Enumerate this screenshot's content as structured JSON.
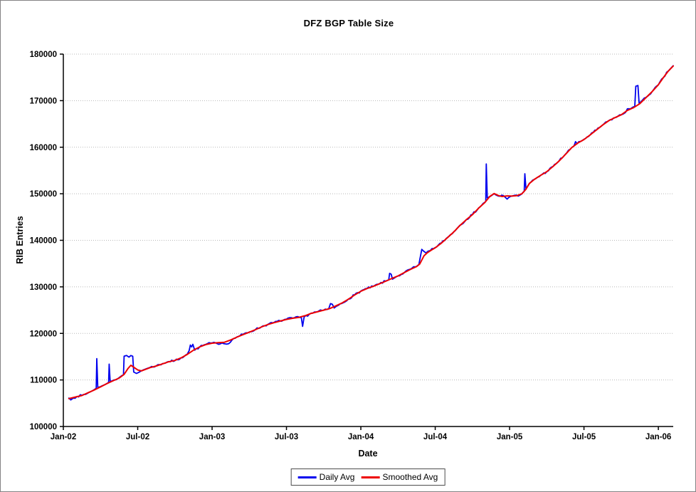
{
  "window": {
    "background": "#ffffff",
    "border_color": "#848284"
  },
  "chart_data": {
    "type": "line",
    "title": "DFZ BGP Table Size",
    "xlabel": "Date",
    "ylabel": "RIB Entries",
    "ylim": [
      100000,
      180000
    ],
    "yticks": [
      100000,
      110000,
      120000,
      130000,
      140000,
      150000,
      160000,
      170000,
      180000
    ],
    "x_unit": "months since Jan-2002",
    "xlim_months": [
      0,
      49.2
    ],
    "xticks": [
      {
        "pos": 0,
        "label": "Jan-02"
      },
      {
        "pos": 6,
        "label": "Jul-02"
      },
      {
        "pos": 12,
        "label": "Jan-03"
      },
      {
        "pos": 18,
        "label": "Jul-03"
      },
      {
        "pos": 24,
        "label": "Jan-04"
      },
      {
        "pos": 30,
        "label": "Jul-04"
      },
      {
        "pos": 36,
        "label": "Jan-05"
      },
      {
        "pos": 42,
        "label": "Jul-05"
      },
      {
        "pos": 48,
        "label": "Jan-06"
      }
    ],
    "grid": "horizontal-dotted",
    "grid_color": "#b8b8b8",
    "axis_color": "#000000",
    "legend_position": "bottom-center",
    "series": [
      {
        "name": "Daily Avg",
        "color": "#0000ee",
        "width": 1.8,
        "texture_amplitude": 220,
        "points": [
          [
            0.45,
            106100
          ],
          [
            0.6,
            105700
          ],
          [
            0.8,
            106100
          ],
          [
            1.1,
            106450
          ],
          [
            1.5,
            106700
          ],
          [
            1.8,
            106900
          ],
          [
            2.1,
            107350
          ],
          [
            2.4,
            107750
          ],
          [
            2.65,
            108200
          ],
          [
            2.7,
            114600
          ],
          [
            2.78,
            108400
          ],
          [
            3.1,
            108700
          ],
          [
            3.4,
            109050
          ],
          [
            3.65,
            109450
          ],
          [
            3.7,
            113400
          ],
          [
            3.78,
            109650
          ],
          [
            4.1,
            110000
          ],
          [
            4.4,
            110300
          ],
          [
            4.7,
            110900
          ],
          [
            4.85,
            111100
          ],
          [
            4.9,
            115100
          ],
          [
            5.1,
            115250
          ],
          [
            5.3,
            114900
          ],
          [
            5.45,
            115250
          ],
          [
            5.6,
            115100
          ],
          [
            5.68,
            111700
          ],
          [
            5.9,
            111400
          ],
          [
            6.1,
            111650
          ],
          [
            6.4,
            112100
          ],
          [
            6.7,
            112400
          ],
          [
            7,
            112700
          ],
          [
            7.5,
            113050
          ],
          [
            8,
            113500
          ],
          [
            8.5,
            113950
          ],
          [
            9,
            114150
          ],
          [
            9.5,
            114750
          ],
          [
            10,
            115550
          ],
          [
            10.15,
            116300
          ],
          [
            10.25,
            117500
          ],
          [
            10.35,
            117100
          ],
          [
            10.45,
            117650
          ],
          [
            10.6,
            116400
          ],
          [
            11,
            117100
          ],
          [
            11.5,
            117650
          ],
          [
            12,
            117950
          ],
          [
            12.4,
            117800
          ],
          [
            12.8,
            117950
          ],
          [
            13.2,
            117700
          ],
          [
            13.6,
            118550
          ],
          [
            14,
            119250
          ],
          [
            14.5,
            119800
          ],
          [
            15,
            120300
          ],
          [
            15.5,
            120850
          ],
          [
            16,
            121450
          ],
          [
            16.5,
            121950
          ],
          [
            17,
            122350
          ],
          [
            17.5,
            122700
          ],
          [
            18,
            123050
          ],
          [
            18.5,
            123300
          ],
          [
            19.2,
            123450
          ],
          [
            19.3,
            121500
          ],
          [
            19.42,
            123500
          ],
          [
            20,
            124350
          ],
          [
            20.5,
            124650
          ],
          [
            21,
            125000
          ],
          [
            21.4,
            125250
          ],
          [
            21.55,
            126400
          ],
          [
            21.7,
            126250
          ],
          [
            21.85,
            125450
          ],
          [
            22.2,
            126050
          ],
          [
            22.6,
            126600
          ],
          [
            23,
            127400
          ],
          [
            23.5,
            128300
          ],
          [
            24,
            129100
          ],
          [
            24.5,
            129650
          ],
          [
            25,
            130100
          ],
          [
            25.5,
            130650
          ],
          [
            26,
            131250
          ],
          [
            26.25,
            131500
          ],
          [
            26.32,
            132900
          ],
          [
            26.45,
            132700
          ],
          [
            26.55,
            131650
          ],
          [
            27,
            132350
          ],
          [
            27.5,
            133050
          ],
          [
            28,
            133800
          ],
          [
            28.5,
            134400
          ],
          [
            28.68,
            134800
          ],
          [
            28.8,
            136500
          ],
          [
            28.92,
            138050
          ],
          [
            29.05,
            137700
          ],
          [
            29.25,
            137300
          ],
          [
            29.6,
            137800
          ],
          [
            30,
            138450
          ],
          [
            30.5,
            139450
          ],
          [
            31,
            140650
          ],
          [
            31.5,
            141850
          ],
          [
            32,
            143250
          ],
          [
            32.5,
            144450
          ],
          [
            33,
            145550
          ],
          [
            33.5,
            146950
          ],
          [
            34,
            148150
          ],
          [
            34.08,
            148350
          ],
          [
            34.12,
            156400
          ],
          [
            34.2,
            149100
          ],
          [
            34.45,
            149450
          ],
          [
            34.75,
            150000
          ],
          [
            35.1,
            149500
          ],
          [
            35.5,
            149600
          ],
          [
            35.8,
            148850
          ],
          [
            36.1,
            149450
          ],
          [
            36.4,
            149650
          ],
          [
            36.7,
            149500
          ],
          [
            36.95,
            149900
          ],
          [
            37.1,
            150350
          ],
          [
            37.18,
            150500
          ],
          [
            37.23,
            154300
          ],
          [
            37.32,
            151000
          ],
          [
            37.6,
            152250
          ],
          [
            38,
            153100
          ],
          [
            38.5,
            153950
          ],
          [
            39,
            154750
          ],
          [
            39.5,
            155850
          ],
          [
            40,
            157100
          ],
          [
            40.5,
            158500
          ],
          [
            41,
            159900
          ],
          [
            41.2,
            160300
          ],
          [
            41.32,
            161200
          ],
          [
            41.45,
            160750
          ],
          [
            42,
            161700
          ],
          [
            42.5,
            162650
          ],
          [
            43,
            163700
          ],
          [
            43.5,
            164750
          ],
          [
            44,
            165700
          ],
          [
            44.5,
            166350
          ],
          [
            45,
            166950
          ],
          [
            45.35,
            167450
          ],
          [
            45.5,
            168250
          ],
          [
            45.9,
            168550
          ],
          [
            46.1,
            168800
          ],
          [
            46.18,
            173100
          ],
          [
            46.35,
            173250
          ],
          [
            46.45,
            169350
          ],
          [
            47,
            170700
          ],
          [
            47.5,
            171950
          ],
          [
            48,
            173400
          ],
          [
            48.4,
            174950
          ],
          [
            48.8,
            176350
          ],
          [
            49.05,
            177100
          ],
          [
            49.2,
            177500
          ]
        ]
      },
      {
        "name": "Smoothed Avg",
        "color": "#ee0000",
        "width": 2,
        "points": [
          [
            0.45,
            106000
          ],
          [
            1,
            106350
          ],
          [
            1.5,
            106650
          ],
          [
            2,
            107250
          ],
          [
            2.5,
            107850
          ],
          [
            3,
            108500
          ],
          [
            3.5,
            109200
          ],
          [
            4,
            109800
          ],
          [
            4.5,
            110400
          ],
          [
            4.9,
            111200
          ],
          [
            5.2,
            112400
          ],
          [
            5.45,
            113150
          ],
          [
            5.7,
            112700
          ],
          [
            6,
            112150
          ],
          [
            6.3,
            111950
          ],
          [
            6.6,
            112250
          ],
          [
            7,
            112650
          ],
          [
            7.5,
            113000
          ],
          [
            8,
            113450
          ],
          [
            8.5,
            113900
          ],
          [
            9,
            114200
          ],
          [
            9.5,
            114750
          ],
          [
            10,
            115500
          ],
          [
            10.5,
            116400
          ],
          [
            11,
            117100
          ],
          [
            11.5,
            117600
          ],
          [
            12,
            117900
          ],
          [
            12.5,
            118000
          ],
          [
            13,
            118100
          ],
          [
            13.5,
            118600
          ],
          [
            14,
            119200
          ],
          [
            14.5,
            119750
          ],
          [
            15,
            120250
          ],
          [
            15.5,
            120800
          ],
          [
            16,
            121400
          ],
          [
            16.5,
            121900
          ],
          [
            17,
            122300
          ],
          [
            17.5,
            122650
          ],
          [
            18,
            123000
          ],
          [
            18.5,
            123250
          ],
          [
            19,
            123450
          ],
          [
            19.5,
            123800
          ],
          [
            20,
            124300
          ],
          [
            20.5,
            124650
          ],
          [
            21,
            125000
          ],
          [
            21.5,
            125350
          ],
          [
            22,
            125950
          ],
          [
            22.5,
            126550
          ],
          [
            23,
            127350
          ],
          [
            23.5,
            128250
          ],
          [
            24,
            129050
          ],
          [
            24.5,
            129650
          ],
          [
            25,
            130100
          ],
          [
            25.5,
            130650
          ],
          [
            26,
            131200
          ],
          [
            26.5,
            131800
          ],
          [
            27,
            132350
          ],
          [
            27.5,
            133050
          ],
          [
            28,
            133750
          ],
          [
            28.5,
            134350
          ],
          [
            28.75,
            134900
          ],
          [
            29.1,
            136700
          ],
          [
            29.35,
            137300
          ],
          [
            29.7,
            137900
          ],
          [
            30,
            138400
          ],
          [
            30.5,
            139400
          ],
          [
            31,
            140600
          ],
          [
            31.5,
            141800
          ],
          [
            32,
            143200
          ],
          [
            32.5,
            144400
          ],
          [
            33,
            145500
          ],
          [
            33.5,
            146900
          ],
          [
            34,
            148100
          ],
          [
            34.4,
            149400
          ],
          [
            34.75,
            150050
          ],
          [
            35.1,
            149600
          ],
          [
            35.4,
            149400
          ],
          [
            35.8,
            149550
          ],
          [
            36.2,
            149500
          ],
          [
            36.6,
            149600
          ],
          [
            37,
            150000
          ],
          [
            37.3,
            150900
          ],
          [
            37.6,
            152200
          ],
          [
            38,
            153100
          ],
          [
            38.5,
            153950
          ],
          [
            39,
            154750
          ],
          [
            39.5,
            155850
          ],
          [
            40,
            157050
          ],
          [
            40.5,
            158450
          ],
          [
            41,
            159900
          ],
          [
            41.5,
            160900
          ],
          [
            42,
            161650
          ],
          [
            42.5,
            162650
          ],
          [
            43,
            163700
          ],
          [
            43.5,
            164750
          ],
          [
            44,
            165700
          ],
          [
            44.5,
            166350
          ],
          [
            45,
            166950
          ],
          [
            45.5,
            167900
          ],
          [
            46,
            168500
          ],
          [
            46.5,
            169350
          ],
          [
            47,
            170650
          ],
          [
            47.5,
            171950
          ],
          [
            48,
            173400
          ],
          [
            48.4,
            174950
          ],
          [
            48.8,
            176350
          ],
          [
            49.2,
            177450
          ]
        ]
      }
    ]
  }
}
